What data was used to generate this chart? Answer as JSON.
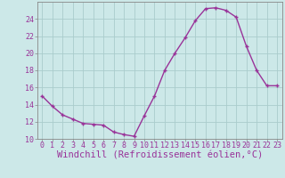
{
  "x": [
    0,
    1,
    2,
    3,
    4,
    5,
    6,
    7,
    8,
    9,
    10,
    11,
    12,
    13,
    14,
    15,
    16,
    17,
    18,
    19,
    20,
    21,
    22,
    23
  ],
  "y": [
    15.0,
    13.8,
    12.8,
    12.3,
    11.8,
    11.7,
    11.6,
    10.8,
    10.5,
    10.3,
    12.7,
    15.0,
    18.0,
    20.0,
    21.8,
    23.8,
    25.2,
    25.3,
    25.0,
    24.2,
    20.8,
    18.0,
    16.2,
    16.2
  ],
  "line_color": "#993399",
  "marker": "+",
  "marker_size": 3,
  "bg_color": "#cce8e8",
  "grid_color": "#aacccc",
  "xlabel": "Windchill (Refroidissement éolien,°C)",
  "ylabel": "",
  "ylim": [
    10,
    26
  ],
  "xlim": [
    -0.5,
    23.5
  ],
  "yticks": [
    10,
    12,
    14,
    16,
    18,
    20,
    22,
    24
  ],
  "xticks": [
    0,
    1,
    2,
    3,
    4,
    5,
    6,
    7,
    8,
    9,
    10,
    11,
    12,
    13,
    14,
    15,
    16,
    17,
    18,
    19,
    20,
    21,
    22,
    23
  ],
  "tick_label_color": "#993399",
  "tick_label_fontsize": 6.0,
  "xlabel_fontsize": 7.5,
  "line_width": 1.0,
  "spine_color": "#888888"
}
